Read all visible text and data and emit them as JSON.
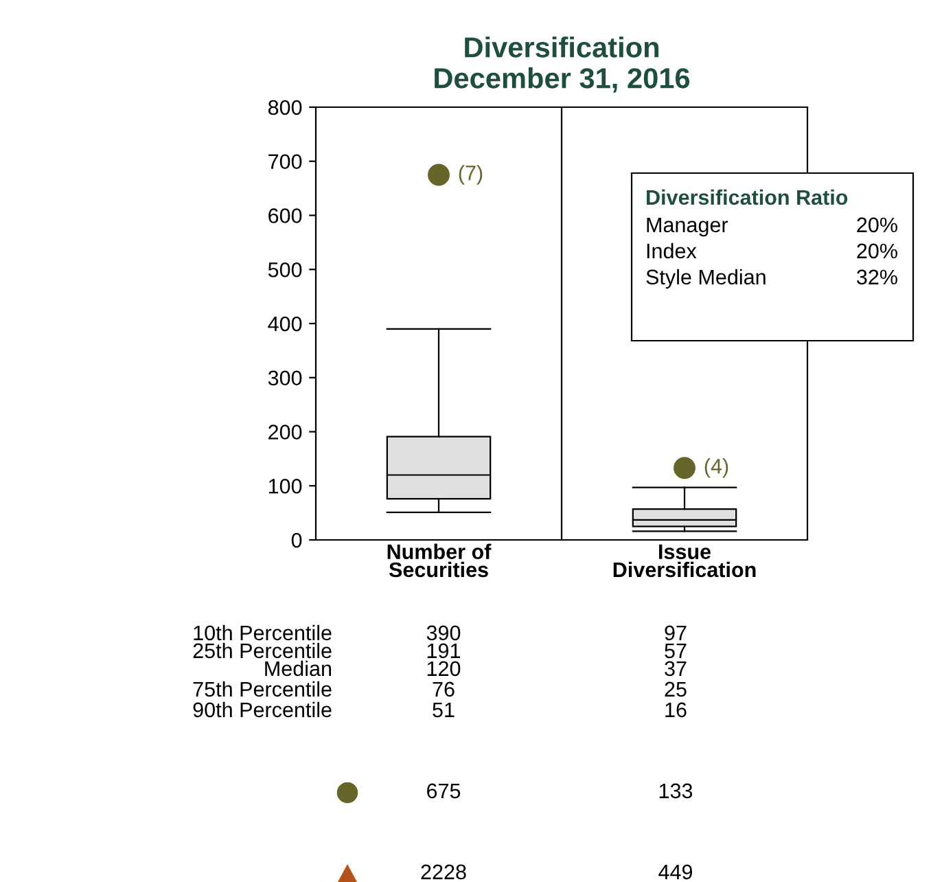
{
  "chart_data": {
    "type": "box",
    "title": "Diversification\nDecember 31, 2016",
    "categories": [
      "Number of\nSecurities",
      "Issue\nDiversification"
    ],
    "boxes": [
      {
        "low": 51,
        "q1": 76,
        "median": 120,
        "q3": 191,
        "high": 390
      },
      {
        "low": 16,
        "q1": 25,
        "median": 37,
        "q3": 57,
        "high": 97
      }
    ],
    "color": "#e0e0e0",
    "series": [
      {
        "type": "scatter",
        "color": "#66652a",
        "marker": "circle",
        "x": [
          "Number of\nSecurities",
          "Issue\nDiversification"
        ],
        "values": [
          675,
          133
        ]
      }
    ],
    "ylim": [
      0,
      800
    ],
    "yticks": [
      0,
      100,
      200,
      300,
      400,
      500,
      600,
      700,
      800
    ],
    "grid": false,
    "annotations": [
      "10th Percentile",
      "25th Percentile",
      "Median",
      "75th Percentile",
      "90th Percentile",
      "390",
      "97",
      "191",
      "57",
      "120",
      "37",
      "76",
      "25",
      "51",
      "16",
      "675",
      "133",
      "2228",
      "449",
      "Diversification Ratio",
      "Manager",
      "20%",
      "Index",
      "20%",
      "Style Median",
      "32%",
      {
        "text": "(7)",
        "x": "Number of\nSecurities",
        "y": 675
      },
      {
        "text": "(4)",
        "x": "Issue\nDiversification",
        "y": 133
      }
    ]
  }
}
